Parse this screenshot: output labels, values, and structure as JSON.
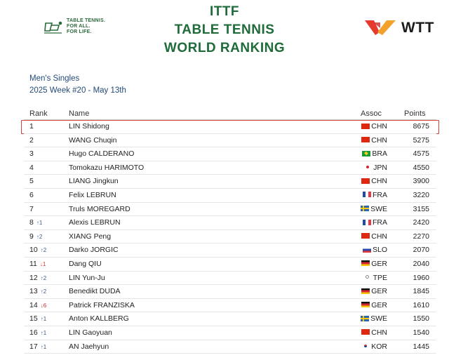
{
  "header": {
    "ittf_logo": {
      "icon": "ittf-paddle-icon",
      "tagline": [
        "TABLE TENNIS.",
        "FOR ALL.",
        "FOR LIFE."
      ]
    },
    "title_lines": [
      "ITTF",
      "TABLE TENNIS",
      "WORLD RANKING"
    ],
    "wtt_logo": {
      "text": "WTT",
      "icon": "wtt-bird-icon",
      "colors": {
        "left": "#e63a2e",
        "right": "#f2a22b"
      }
    }
  },
  "subtitle": {
    "category": "Men's Singles",
    "week": "2025 Week #20 - May 13th"
  },
  "table": {
    "columns": {
      "rank": "Rank",
      "name": "Name",
      "assoc": "Assoc",
      "points": "Points"
    },
    "highlight_color": "#d9413f",
    "rows": [
      {
        "rank": "1",
        "change": "",
        "direction": "",
        "name": "LIN Shidong",
        "flag": "chn",
        "assoc": "CHN",
        "points": "8675",
        "highlight": true
      },
      {
        "rank": "2",
        "change": "",
        "direction": "",
        "name": "WANG Chuqin",
        "flag": "chn",
        "assoc": "CHN",
        "points": "5275"
      },
      {
        "rank": "3",
        "change": "",
        "direction": "",
        "name": "Hugo CALDERANO",
        "flag": "bra",
        "assoc": "BRA",
        "points": "4575"
      },
      {
        "rank": "4",
        "change": "",
        "direction": "",
        "name": "Tomokazu HARIMOTO",
        "flag": "jpn",
        "assoc": "JPN",
        "points": "4550"
      },
      {
        "rank": "5",
        "change": "",
        "direction": "",
        "name": "LIANG Jingkun",
        "flag": "chn",
        "assoc": "CHN",
        "points": "3900"
      },
      {
        "rank": "6",
        "change": "",
        "direction": "",
        "name": "Felix LEBRUN",
        "flag": "fra",
        "assoc": "FRA",
        "points": "3220"
      },
      {
        "rank": "7",
        "change": "",
        "direction": "",
        "name": "Truls MOREGARD",
        "flag": "swe",
        "assoc": "SWE",
        "points": "3155"
      },
      {
        "rank": "8",
        "change": "↑1",
        "direction": "up",
        "name": "Alexis LEBRUN",
        "flag": "fra",
        "assoc": "FRA",
        "points": "2420"
      },
      {
        "rank": "9",
        "change": "↑2",
        "direction": "up",
        "name": "XIANG Peng",
        "flag": "chn",
        "assoc": "CHN",
        "points": "2270"
      },
      {
        "rank": "10",
        "change": "↑2",
        "direction": "up",
        "name": "Darko JORGIC",
        "flag": "slo",
        "assoc": "SLO",
        "points": "2070"
      },
      {
        "rank": "11",
        "change": "↓1",
        "direction": "down",
        "name": "Dang QIU",
        "flag": "ger",
        "assoc": "GER",
        "points": "2040"
      },
      {
        "rank": "12",
        "change": "↑2",
        "direction": "up",
        "name": "LIN Yun-Ju",
        "flag": "tpe",
        "assoc": "TPE",
        "points": "1960"
      },
      {
        "rank": "13",
        "change": "↑2",
        "direction": "up",
        "name": "Benedikt DUDA",
        "flag": "ger",
        "assoc": "GER",
        "points": "1845"
      },
      {
        "rank": "14",
        "change": "↓6",
        "direction": "down",
        "name": "Patrick FRANZISKA",
        "flag": "ger",
        "assoc": "GER",
        "points": "1610"
      },
      {
        "rank": "15",
        "change": "↑1",
        "direction": "up",
        "name": "Anton KALLBERG",
        "flag": "swe",
        "assoc": "SWE",
        "points": "1550"
      },
      {
        "rank": "16",
        "change": "↑1",
        "direction": "up",
        "name": "LIN Gaoyuan",
        "flag": "chn",
        "assoc": "CHN",
        "points": "1540"
      },
      {
        "rank": "17",
        "change": "↑1",
        "direction": "up",
        "name": "AN Jaehyun",
        "flag": "kor",
        "assoc": "KOR",
        "points": "1445"
      }
    ]
  }
}
